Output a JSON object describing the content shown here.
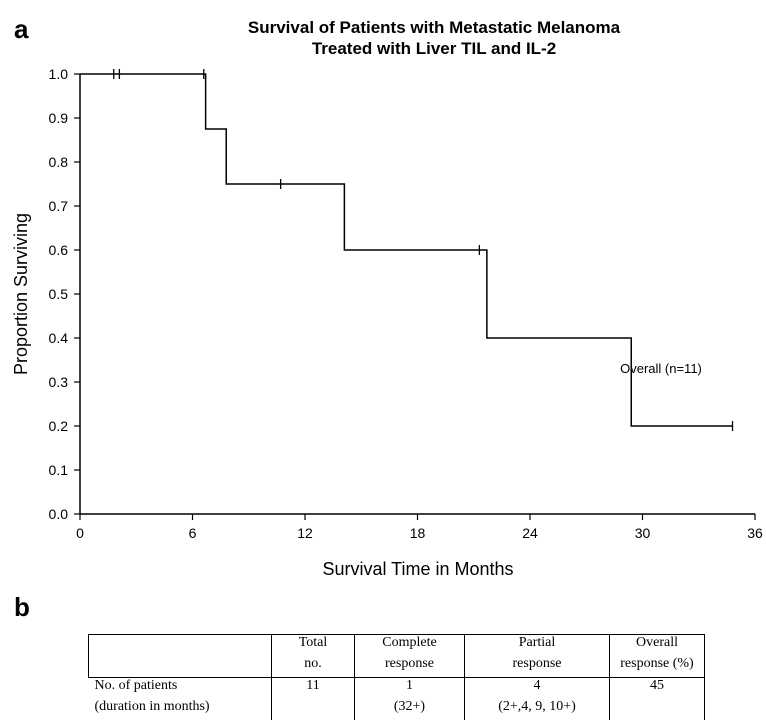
{
  "panel_a_letter": "a",
  "panel_b_letter": "b",
  "chart_data": {
    "type": "line",
    "title_lines": [
      "Survival of Patients with Metastatic Melanoma",
      "Treated with Liver TIL and IL-2"
    ],
    "xlabel": "Survival Time in Months",
    "ylabel": "Proportion Surviving",
    "xlim": [
      0,
      36
    ],
    "ylim": [
      0,
      1.0
    ],
    "xticks": [
      "0",
      "6",
      "12",
      "18",
      "24",
      "30",
      "36"
    ],
    "yticks": [
      "0.0",
      "0.1",
      "0.2",
      "0.3",
      "0.4",
      "0.5",
      "0.6",
      "0.7",
      "0.8",
      "0.9",
      "1.0"
    ],
    "grid": false,
    "series": [
      {
        "name": "Overall (n=11)",
        "color": "#000000",
        "step_points": [
          {
            "x": 0,
            "y": 1.0
          },
          {
            "x": 6.7,
            "y": 0.875
          },
          {
            "x": 7.8,
            "y": 0.75
          },
          {
            "x": 14.1,
            "y": 0.6
          },
          {
            "x": 21.7,
            "y": 0.4
          },
          {
            "x": 29.4,
            "y": 0.2
          },
          {
            "x": 34.8,
            "y": 0.2
          }
        ],
        "censored": [
          {
            "x": 1.8,
            "y": 1.0
          },
          {
            "x": 2.1,
            "y": 1.0
          },
          {
            "x": 6.6,
            "y": 1.0
          },
          {
            "x": 10.7,
            "y": 0.75
          },
          {
            "x": 21.3,
            "y": 0.6
          },
          {
            "x": 34.8,
            "y": 0.2
          }
        ]
      }
    ],
    "legend_text": "Overall  (n=11)"
  },
  "table": {
    "header_row1": [
      "",
      "Total",
      "Complete",
      "Partial",
      "Overall"
    ],
    "header_row2": [
      "",
      "no.",
      "response",
      "response",
      "response (%)"
    ],
    "data_row1": [
      "No. of patients",
      "11",
      "1",
      "4",
      "45"
    ],
    "data_row2": [
      "(duration in months)",
      "",
      "(32+)",
      "(2+,4, 9, 10+)",
      ""
    ]
  }
}
